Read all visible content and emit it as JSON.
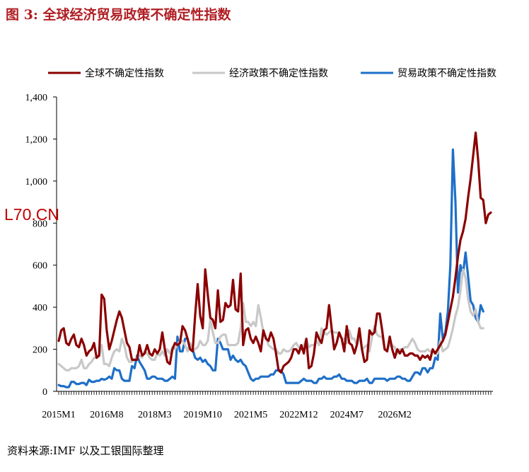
{
  "title": "图 3:  全球经济贸易政策不确定性指数",
  "watermark": "L70.CN",
  "source": "资料来源:IMF 以及工银国际整理",
  "chart_data": {
    "type": "line",
    "title": "",
    "xlabel": "",
    "ylabel": "",
    "ylim": [
      0,
      1400
    ],
    "yticks": [
      0,
      200,
      400,
      600,
      800,
      1000,
      1200,
      1400
    ],
    "ytick_labels": [
      "0",
      "200",
      "400",
      "600",
      "800",
      "1,000",
      "1,200",
      "1,400"
    ],
    "xtick_labels": [
      "2015M1",
      "2016M8",
      "2018M3",
      "2019M10",
      "2021M5",
      "2022M12",
      "2024M7",
      "2026M2"
    ],
    "legend_position": "top",
    "grid": false,
    "series": [
      {
        "name": "全球不确定性指数",
        "color": "#8b0000",
        "values": [
          240,
          290,
          300,
          230,
          220,
          250,
          270,
          220,
          210,
          250,
          220,
          170,
          190,
          200,
          230,
          160,
          170,
          460,
          440,
          290,
          200,
          240,
          290,
          340,
          380,
          350,
          290,
          230,
          210,
          150,
          150,
          150,
          220,
          170,
          180,
          220,
          180,
          170,
          200,
          180,
          200,
          280,
          200,
          140,
          130,
          200,
          230,
          220,
          230,
          310,
          290,
          250,
          200,
          190,
          360,
          510,
          360,
          300,
          580,
          460,
          350,
          340,
          300,
          480,
          330,
          340,
          420,
          400,
          410,
          530,
          390,
          380,
          560,
          220,
          290,
          300,
          250,
          230,
          260,
          230,
          190,
          290,
          250,
          240,
          280,
          250,
          180,
          100,
          90,
          120,
          130,
          140,
          160,
          200,
          200,
          180,
          220,
          180,
          250,
          110,
          120,
          180,
          280,
          250,
          230,
          290,
          300,
          410,
          300,
          200,
          230,
          280,
          250,
          190,
          310,
          230,
          220,
          180,
          220,
          300,
          200,
          140,
          150,
          290,
          270,
          280,
          370,
          370,
          290,
          200,
          190,
          260,
          200,
          160,
          200,
          180,
          200,
          170,
          170,
          180,
          180,
          170,
          170,
          150,
          170,
          160,
          170,
          150,
          200,
          180,
          200,
          220,
          240,
          270,
          330,
          390,
          450,
          540,
          640,
          720,
          760,
          820,
          920,
          1010,
          1120,
          1230,
          1100,
          920,
          910,
          800,
          840,
          850
        ]
      },
      {
        "name": "经济政策不确定性指数",
        "color": "#c8c8c8",
        "values": [
          130,
          120,
          110,
          100,
          100,
          110,
          110,
          110,
          120,
          150,
          110,
          110,
          130,
          140,
          160,
          160,
          170,
          220,
          130,
          130,
          120,
          160,
          190,
          200,
          190,
          250,
          220,
          160,
          140,
          140,
          150,
          160,
          170,
          160,
          190,
          180,
          160,
          150,
          150,
          180,
          170,
          190,
          170,
          200,
          180,
          210,
          200,
          220,
          240,
          240,
          220,
          190,
          230,
          200,
          200,
          210,
          240,
          220,
          220,
          240,
          340,
          280,
          230,
          230,
          260,
          270,
          270,
          220,
          220,
          220,
          220,
          230,
          300,
          420,
          330,
          330,
          310,
          330,
          310,
          410,
          350,
          280,
          260,
          220,
          210,
          200,
          200,
          180,
          180,
          200,
          190,
          190,
          200,
          220,
          230,
          210,
          200,
          220,
          250,
          210,
          220,
          220,
          240,
          220,
          300,
          280,
          270,
          280,
          290,
          280,
          280,
          270,
          250,
          250,
          230,
          290,
          250,
          250,
          220,
          260,
          200,
          210,
          220,
          190,
          260,
          310,
          270,
          260,
          260,
          200,
          200,
          220,
          220,
          210,
          180,
          200,
          200,
          210,
          210,
          230,
          250,
          230,
          200,
          190,
          190,
          190,
          200,
          190,
          190,
          180,
          180,
          240,
          190,
          200,
          210,
          250,
          300,
          360,
          400,
          480,
          580,
          540,
          440,
          380,
          360,
          390,
          330,
          300,
          300
        ]
      },
      {
        "name": "贸易政策不确定性指数",
        "color": "#1e6fc8",
        "values": [
          30,
          25,
          25,
          20,
          20,
          45,
          45,
          35,
          35,
          40,
          40,
          30,
          55,
          45,
          45,
          50,
          50,
          60,
          55,
          60,
          70,
          60,
          110,
          100,
          100,
          60,
          50,
          50,
          50,
          120,
          110,
          170,
          140,
          120,
          100,
          60,
          60,
          70,
          70,
          60,
          60,
          60,
          50,
          50,
          60,
          70,
          60,
          260,
          190,
          190,
          250,
          250,
          200,
          200,
          160,
          150,
          160,
          140,
          150,
          130,
          120,
          100,
          100,
          250,
          230,
          200,
          200,
          200,
          150,
          170,
          150,
          140,
          150,
          130,
          120,
          90,
          60,
          50,
          60,
          60,
          70,
          70,
          70,
          70,
          80,
          80,
          100,
          100,
          100,
          80,
          40,
          40,
          40,
          40,
          40,
          40,
          50,
          60,
          50,
          50,
          50,
          40,
          40,
          60,
          60,
          70,
          60,
          60,
          60,
          70,
          70,
          80,
          60,
          60,
          50,
          50,
          50,
          40,
          40,
          50,
          50,
          50,
          60,
          40,
          40,
          60,
          60,
          60,
          60,
          60,
          50,
          60,
          60,
          60,
          70,
          70,
          60,
          60,
          50,
          50,
          70,
          90,
          90,
          80,
          110,
          110,
          90,
          110,
          110,
          160,
          150,
          370,
          250,
          280,
          380,
          600,
          1150,
          900,
          470,
          600,
          560,
          660,
          550,
          430,
          410,
          350,
          330,
          410,
          380
        ]
      }
    ]
  }
}
